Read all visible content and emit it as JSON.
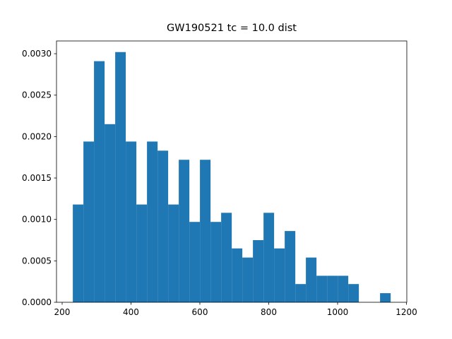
{
  "chart_data": {
    "type": "histogram",
    "title": "GW190521 tc = 10.0 dist",
    "color": "#1f77b4",
    "bins": [
      231,
      261.8,
      292.5,
      323.3,
      354.1,
      384.8,
      415.6,
      446.4,
      477.2,
      507.9,
      538.7,
      569.5,
      600.2,
      631,
      661.8,
      692.6,
      723.3,
      754.1,
      784.9,
      815.6,
      846.4,
      877.2,
      907.9,
      938.7,
      969.5,
      1000.3,
      1031,
      1061.8,
      1092.6,
      1123.3,
      1154.1
    ],
    "values": [
      0.00118,
      0.00194,
      0.00291,
      0.00215,
      0.00302,
      0.00194,
      0.00118,
      0.00194,
      0.00183,
      0.00118,
      0.00172,
      0.00097,
      0.00172,
      0.00097,
      0.00108,
      0.00065,
      0.00054,
      0.00075,
      0.00108,
      0.00065,
      0.00086,
      0.00022,
      0.00054,
      0.00032,
      0.00032,
      0.00032,
      0.00022,
      0,
      0,
      0.00011
    ],
    "xlim": [
      183.6,
      1201
    ],
    "xticks": [
      200,
      400,
      600,
      800,
      1000,
      1200
    ],
    "ylim": [
      0,
      0.003154
    ],
    "yticks": [
      {
        "value": 0,
        "label": "0.0000"
      },
      {
        "value": 0.0005,
        "label": "0.0005"
      },
      {
        "value": 0.001,
        "label": "0.0010"
      },
      {
        "value": 0.0015,
        "label": "0.0015"
      },
      {
        "value": 0.002,
        "label": "0.0020"
      },
      {
        "value": 0.0025,
        "label": "0.0025"
      },
      {
        "value": 0.003,
        "label": "0.0030"
      }
    ]
  }
}
